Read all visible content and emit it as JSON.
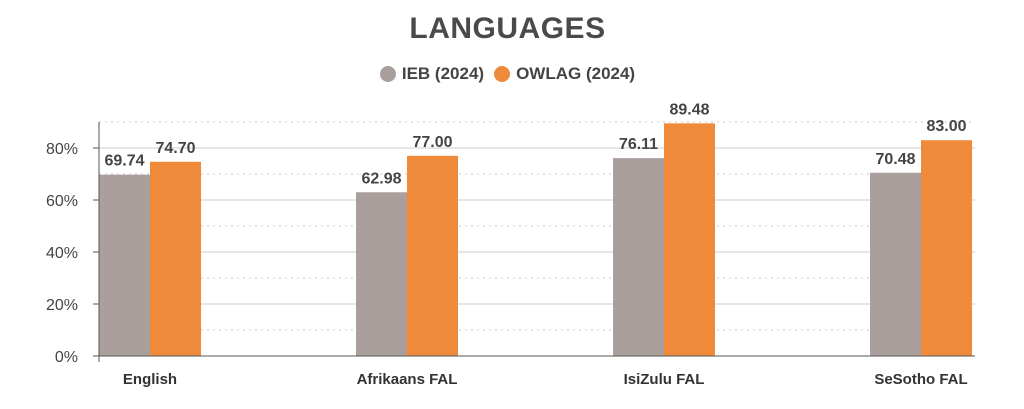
{
  "chart_data": {
    "type": "bar",
    "title": "LANGUAGES",
    "xlabel": "",
    "ylabel": "",
    "categories": [
      "English",
      "Afrikaans FAL",
      "IsiZulu FAL",
      "SeSotho FAL"
    ],
    "series": [
      {
        "name": "IEB (2024)",
        "values": [
          69.74,
          62.98,
          76.11,
          70.48
        ],
        "labels": [
          "69.74",
          "62.98",
          "76.11",
          "70.48"
        ],
        "color": "#ab9f9d"
      },
      {
        "name": "OWLAG (2024)",
        "values": [
          74.7,
          77.0,
          89.48,
          83.0
        ],
        "labels": [
          "74.70",
          "77.00",
          "89.48",
          "83.00"
        ],
        "color": "#f08a3b"
      }
    ],
    "ylim": [
      0,
      90
    ],
    "yticks": [
      0,
      20,
      40,
      60,
      80
    ],
    "ytick_labels": [
      "0%",
      "20%",
      "40%",
      "60%",
      "80%"
    ],
    "grid": true,
    "legend_position": "top-center"
  }
}
